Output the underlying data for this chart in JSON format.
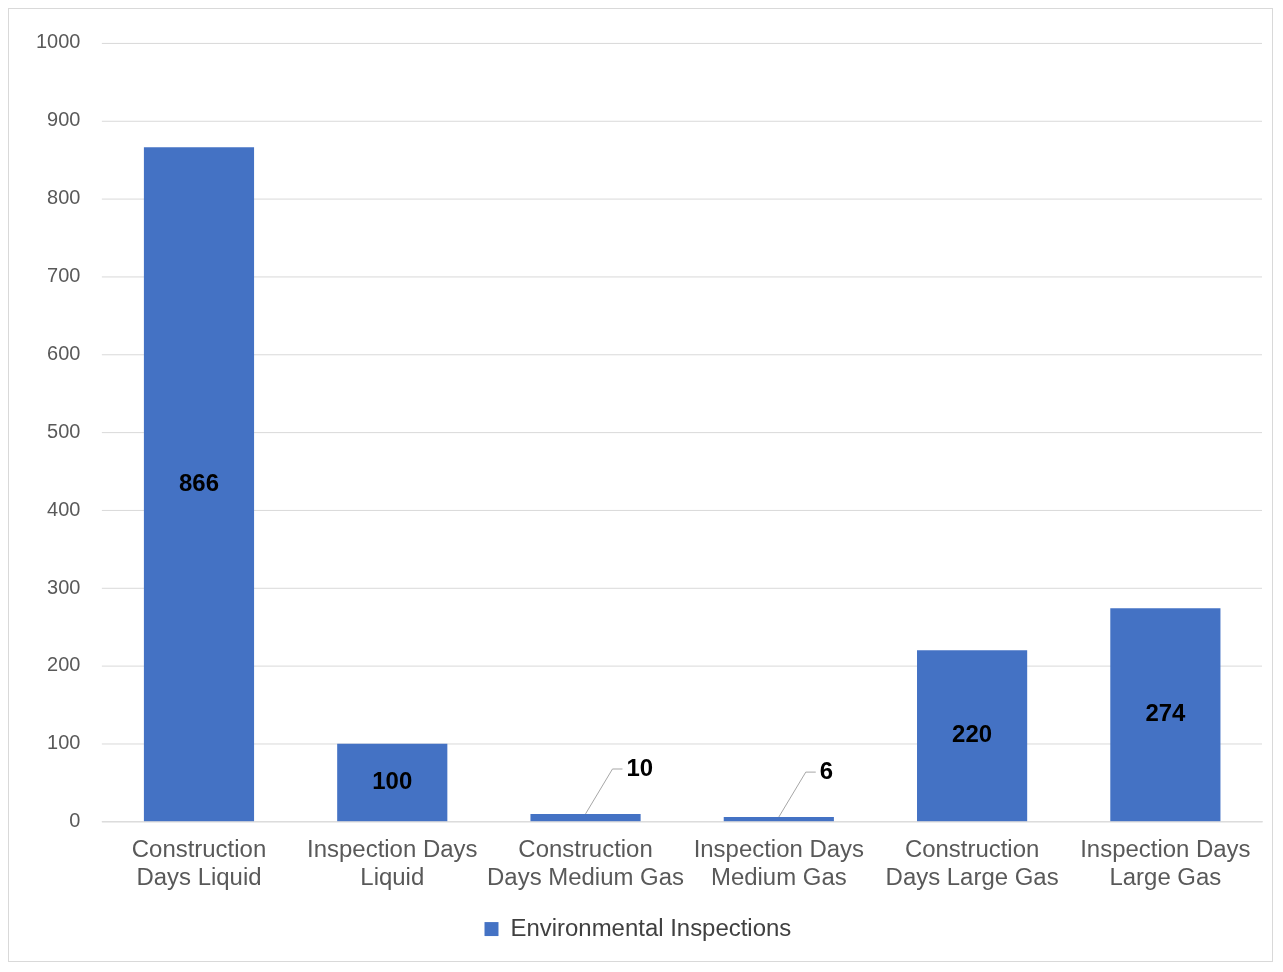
{
  "chart_data": {
    "type": "bar",
    "categories": [
      "Construction Days Liquid",
      "Inspection Days Liquid",
      "Construction Days Medium Gas",
      "Inspection Days Medium Gas",
      "Construction Days Large Gas",
      "Inspection Days Large Gas"
    ],
    "series": [
      {
        "name": "Environmental Inspections",
        "color": "#4472c4",
        "values": [
          866,
          100,
          10,
          6,
          220,
          274
        ]
      }
    ],
    "ylim": [
      0,
      1000
    ],
    "yticks": [
      0,
      100,
      200,
      300,
      400,
      500,
      600,
      700,
      800,
      900,
      1000
    ],
    "grid": "y",
    "legend": "bottom",
    "data_labels": true
  }
}
